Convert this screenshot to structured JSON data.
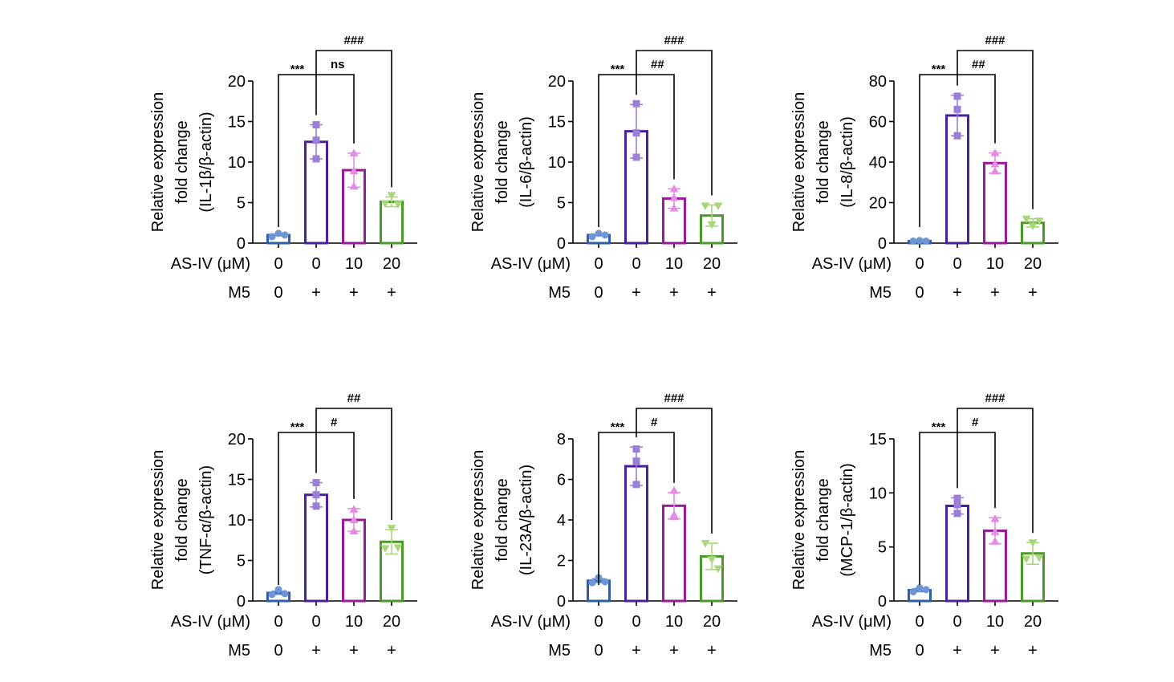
{
  "figure": {
    "row_label_treatment": "AS-IV (μM)",
    "row_label_m5": "M5"
  },
  "chart_data": [
    {
      "type": "bar",
      "title": "",
      "ylabel": [
        "Relative expression",
        "fold change",
        "(IL-1β/β-actin)"
      ],
      "ylim": [
        0,
        20
      ],
      "yticks": [
        0,
        5,
        10,
        15,
        20
      ],
      "categories": [
        "0 / 0",
        "0 / +",
        "10 / +",
        "20 / +"
      ],
      "as_iv": [
        "0",
        "0",
        "10",
        "20"
      ],
      "m5": [
        "0",
        "+",
        "+",
        "+"
      ],
      "values": [
        1.0,
        12.5,
        9.0,
        5.1
      ],
      "errors": [
        0.1,
        2.1,
        2.1,
        0.6
      ],
      "points": [
        [
          0.8,
          1.2,
          1.0
        ],
        [
          10.4,
          12.7,
          14.6
        ],
        [
          7.0,
          8.9,
          11.1
        ],
        [
          4.9,
          5.9,
          4.8
        ]
      ],
      "significance": [
        {
          "from": 0,
          "to": 2,
          "label": "***",
          "sublabel": "ns"
        },
        {
          "from": 1,
          "to": 3,
          "label": "###"
        }
      ]
    },
    {
      "type": "bar",
      "title": "",
      "ylabel": [
        "Relative expression",
        "fold change",
        "(IL-6/β-actin)"
      ],
      "ylim": [
        0,
        20
      ],
      "yticks": [
        0,
        5,
        10,
        15,
        20
      ],
      "categories": [
        "0 / 0",
        "0 / +",
        "10 / +",
        "20 / +"
      ],
      "as_iv": [
        "0",
        "0",
        "10",
        "20"
      ],
      "m5": [
        "0",
        "+",
        "+",
        "+"
      ],
      "values": [
        1.0,
        13.8,
        5.5,
        3.4
      ],
      "errors": [
        0.1,
        3.3,
        1.2,
        1.3
      ],
      "points": [
        [
          0.8,
          1.2,
          1.0
        ],
        [
          10.6,
          13.6,
          17.2
        ],
        [
          4.3,
          5.6,
          6.7
        ],
        [
          4.6,
          2.3,
          4.6
        ]
      ],
      "significance": [
        {
          "from": 0,
          "to": 2,
          "label": "***",
          "sublabel": "##"
        },
        {
          "from": 1,
          "to": 3,
          "label": "###"
        }
      ]
    },
    {
      "type": "bar",
      "title": "",
      "ylabel": [
        "Relative expression",
        "fold change",
        "(IL-8/β-actin)"
      ],
      "ylim": [
        0,
        80
      ],
      "yticks": [
        0,
        20,
        40,
        60,
        80
      ],
      "categories": [
        "0 / 0",
        "0 / +",
        "10 / +",
        "20 / +"
      ],
      "as_iv": [
        "0",
        "0",
        "10",
        "20"
      ],
      "m5": [
        "0",
        "+",
        "+",
        "+"
      ],
      "values": [
        1.0,
        63.0,
        39.5,
        10.0
      ],
      "errors": [
        0.2,
        10.0,
        5.0,
        2.0
      ],
      "points": [
        [
          1.0,
          1.3,
          1.0
        ],
        [
          53.0,
          66.0,
          72.5
        ],
        [
          35.5,
          39.0,
          44.5
        ],
        [
          12.0,
          8.5,
          11.0
        ]
      ],
      "significance": [
        {
          "from": 0,
          "to": 2,
          "label": "***",
          "sublabel": "##"
        },
        {
          "from": 1,
          "to": 3,
          "label": "###"
        }
      ]
    },
    {
      "type": "bar",
      "title": "",
      "ylabel": [
        "Relative expression",
        "fold change",
        "(TNF-α/β-actin)"
      ],
      "ylim": [
        0,
        20
      ],
      "yticks": [
        0,
        5,
        10,
        15,
        20
      ],
      "categories": [
        "0 / 0",
        "0 / +",
        "10 / +",
        "20 / +"
      ],
      "as_iv": [
        "0",
        "0",
        "10",
        "20"
      ],
      "m5": [
        "0",
        "+",
        "+",
        "+"
      ],
      "values": [
        1.0,
        13.1,
        10.0,
        7.3
      ],
      "errors": [
        0.2,
        1.5,
        1.4,
        1.5
      ],
      "points": [
        [
          0.8,
          1.4,
          0.9
        ],
        [
          11.7,
          13.1,
          14.6
        ],
        [
          8.6,
          10.0,
          11.3
        ],
        [
          6.5,
          9.0,
          6.6
        ]
      ],
      "significance": [
        {
          "from": 0,
          "to": 2,
          "label": "***",
          "sublabel": "#"
        },
        {
          "from": 1,
          "to": 3,
          "label": "##"
        }
      ]
    },
    {
      "type": "bar",
      "title": "",
      "ylabel": [
        "Relative expression",
        "fold change",
        "(IL-23A/β-actin)"
      ],
      "ylim": [
        0,
        8
      ],
      "yticks": [
        0,
        2,
        4,
        6,
        8
      ],
      "categories": [
        "0 / 0",
        "0 / +",
        "10 / +",
        "20 / +"
      ],
      "as_iv": [
        "0",
        "0",
        "10",
        "20"
      ],
      "m5": [
        "0",
        "+",
        "+",
        "+"
      ],
      "values": [
        1.0,
        6.65,
        4.7,
        2.2
      ],
      "errors": [
        0.1,
        0.95,
        0.65,
        0.65
      ],
      "points": [
        [
          0.9,
          1.15,
          0.95
        ],
        [
          5.75,
          6.9,
          7.5
        ],
        [
          4.15,
          5.45,
          4.25
        ],
        [
          2.85,
          2.05,
          1.6
        ]
      ],
      "significance": [
        {
          "from": 0,
          "to": 2,
          "label": "***",
          "sublabel": "#"
        },
        {
          "from": 1,
          "to": 3,
          "label": "###"
        }
      ]
    },
    {
      "type": "bar",
      "title": "",
      "ylabel": [
        "Relative expression",
        "fold change",
        "(MCP-1/β-actin)"
      ],
      "ylim": [
        0,
        15
      ],
      "yticks": [
        0,
        5,
        10,
        15
      ],
      "categories": [
        "0 / 0",
        "0 / +",
        "10 / +",
        "20 / +"
      ],
      "as_iv": [
        "0",
        "0",
        "10",
        "20"
      ],
      "m5": [
        "0",
        "+",
        "+",
        "+"
      ],
      "values": [
        1.0,
        8.8,
        6.5,
        4.4
      ],
      "errors": [
        0.15,
        0.75,
        1.2,
        1.0
      ],
      "points": [
        [
          0.85,
          1.2,
          1.05
        ],
        [
          8.1,
          9.5,
          8.9
        ],
        [
          5.5,
          6.4,
          7.6
        ],
        [
          3.9,
          5.4,
          4.0
        ]
      ],
      "significance": [
        {
          "from": 0,
          "to": 2,
          "label": "***",
          "sublabel": "#"
        },
        {
          "from": 1,
          "to": 3,
          "label": "###"
        }
      ]
    }
  ],
  "colors": {
    "bar_outline": [
      "#2f5ea8",
      "#4a1fa0",
      "#9b1a9b",
      "#4a9a2a"
    ],
    "points": [
      "#6e95d6",
      "#9b7fd6",
      "#e48be4",
      "#a9d67a"
    ],
    "axis": "#000000"
  },
  "markers": [
    "circle",
    "square",
    "triangle-up",
    "triangle-down"
  ]
}
